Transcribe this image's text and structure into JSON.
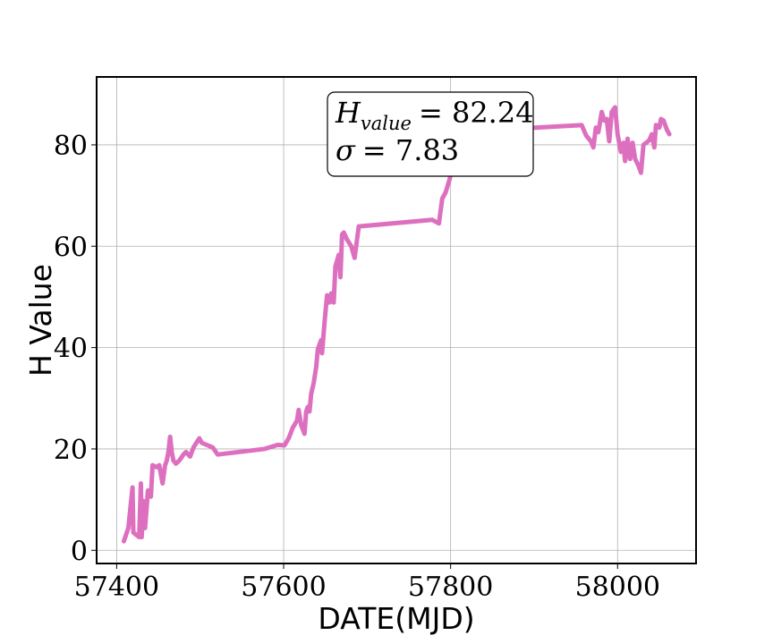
{
  "chart_data": {
    "type": "line",
    "x_label": "DATE(MJD)",
    "y_label": "H Value",
    "annotation": [
      {
        "symbol": "H",
        "subscript": "value",
        "text": "= 82.24"
      },
      {
        "symbol": "σ",
        "text": "= 7.83"
      }
    ],
    "color": "#dd6fbf",
    "grid": true,
    "xlim": [
      57376,
      58094
    ],
    "ylim": [
      -2.6,
      93.4
    ],
    "xticks": [
      57400,
      57600,
      57800,
      58000
    ],
    "yticks": [
      0,
      20,
      40,
      60,
      80
    ],
    "x": [
      57408.6,
      57414,
      57419,
      57420,
      57427,
      57429,
      57430,
      57432,
      57434,
      57437.5,
      57441,
      57443,
      57448,
      57451,
      57455,
      57458,
      57460,
      57462,
      57464,
      57466,
      57468,
      57471,
      57475,
      57480,
      57483,
      57488,
      57492,
      57499,
      57502,
      57515,
      57521,
      57577,
      57593,
      57601,
      57606,
      57611,
      57616,
      57618,
      57621,
      57625,
      57627,
      57629,
      57631,
      57633,
      57636,
      57639,
      57641,
      57645,
      57646,
      57649,
      57652,
      57655,
      57657,
      57660,
      57662,
      57666,
      57668,
      57670,
      57672,
      57676,
      57681,
      57685,
      57690,
      57778,
      57786,
      57790,
      57794,
      57799,
      57800,
      57837,
      57904,
      57957,
      57962.5,
      57968,
      57971,
      57974,
      57977,
      57981,
      57984,
      57987,
      57990,
      57993,
      57997,
      58000,
      58004,
      58007,
      58009,
      58012,
      58015,
      58018,
      58021,
      58025,
      58028,
      58031,
      58038,
      58041,
      58044,
      58046,
      58050,
      58052,
      58055,
      58059,
      58062
    ],
    "values": [
      1.8,
      4.4,
      12.4,
      3.5,
      2.6,
      13.2,
      2.6,
      9.7,
      4.4,
      11.8,
      10.6,
      16.8,
      16.4,
      16.8,
      13.2,
      16.8,
      17.7,
      19.4,
      22.4,
      19.4,
      17.7,
      17.1,
      17.7,
      18.9,
      19.4,
      18.5,
      20.3,
      22.1,
      21.2,
      20.3,
      18.9,
      20,
      20.8,
      20.7,
      22.1,
      24.2,
      25.6,
      27.7,
      24.7,
      23,
      27.4,
      28.3,
      27.4,
      30.9,
      33,
      36.2,
      39.7,
      41.5,
      38.9,
      45,
      50.3,
      48.9,
      50.7,
      48.9,
      56,
      58.3,
      53.9,
      62.3,
      62.7,
      61.3,
      60,
      57.7,
      63.9,
      65.2,
      64.5,
      69.4,
      70.6,
      73.3,
      74.2,
      83,
      83.4,
      83.9,
      81.8,
      80.7,
      79.5,
      83.4,
      82.5,
      86.5,
      84.8,
      85.1,
      80.7,
      86.5,
      87.4,
      82.1,
      78.6,
      80.4,
      76.8,
      81.2,
      77.2,
      80.4,
      77.2,
      75.9,
      74.5,
      80,
      80.9,
      82.1,
      79.5,
      83.9,
      83.4,
      85.1,
      84.8,
      83,
      82.1
    ]
  }
}
